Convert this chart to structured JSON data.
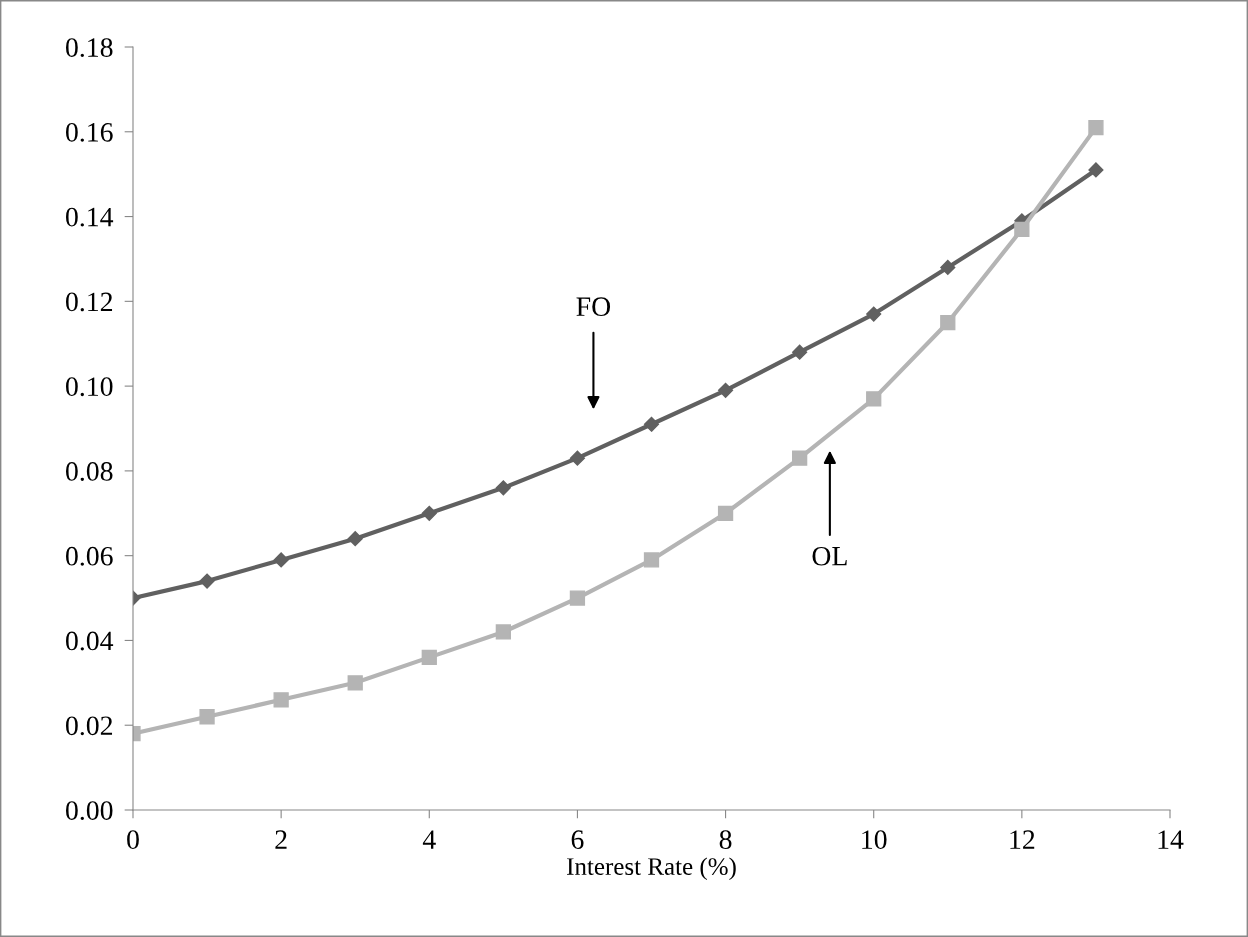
{
  "chart_data": {
    "type": "line",
    "xlabel": "Interest Rate (%)",
    "x": [
      0,
      1,
      2,
      3,
      4,
      5,
      6,
      7,
      8,
      9,
      10,
      11,
      12,
      13
    ],
    "series": [
      {
        "color": "#606060",
        "marker": "diamond",
        "values": [
          0.05,
          0.054,
          0.059,
          0.064,
          0.07,
          0.076,
          0.083,
          0.091,
          0.099,
          0.108,
          0.117,
          0.128,
          0.139,
          0.151
        ]
      },
      {
        "color": "#b4b4b4",
        "marker": "square",
        "values": [
          0.018,
          0.022,
          0.026,
          0.03,
          0.036,
          0.042,
          0.05,
          0.059,
          0.07,
          0.083,
          0.097,
          0.115,
          0.137,
          0.161
        ]
      }
    ],
    "annotations": [
      "FO",
      "OL"
    ],
    "xlim": [
      0,
      14
    ],
    "xticks": [
      0,
      2,
      4,
      6,
      8,
      10,
      12,
      14
    ],
    "ylim": [
      0,
      0.18
    ],
    "yticks": [
      {
        "value": 0,
        "label": "0.00"
      },
      {
        "value": 0.02,
        "label": "0.02"
      },
      {
        "value": 0.04,
        "label": "0.04"
      },
      {
        "value": 0.06,
        "label": "0.06"
      },
      {
        "value": 0.08,
        "label": "0.08"
      },
      {
        "value": 0.1,
        "label": "0.10"
      },
      {
        "value": 0.12,
        "label": "0.12"
      },
      {
        "value": 0.14,
        "label": "0.14"
      },
      {
        "value": 0.16,
        "label": "0.16"
      },
      {
        "value": 0.18,
        "label": "0.18"
      }
    ],
    "grid": false,
    "legend": false
  }
}
